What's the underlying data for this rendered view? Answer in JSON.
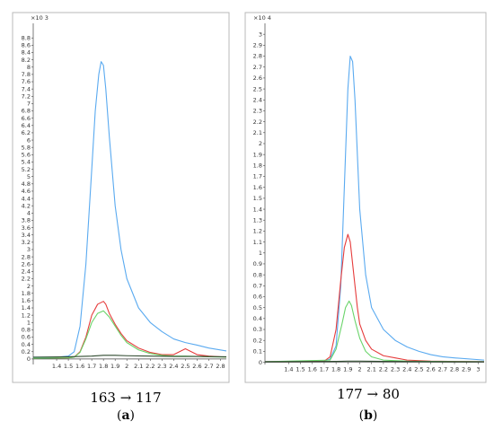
{
  "panels": [
    {
      "label": "a",
      "transition": "163 → 117",
      "multiplier": "×10 3",
      "chart_data": {
        "type": "line",
        "xlim": [
          1.2,
          2.85
        ],
        "ylim": [
          -0.15,
          9.2
        ],
        "xticks": [
          "1.4",
          "1.5",
          "1.6",
          "1.7",
          "1.8",
          "1.9",
          "2",
          "2.1",
          "2.2",
          "2.3",
          "2.4",
          "2.5",
          "2.6",
          "2.7",
          "2.8"
        ],
        "yticks": [
          "0",
          "0.2",
          "0.4",
          "0.6",
          "0.8",
          "1",
          "1.2",
          "1.4",
          "1.6",
          "1.8",
          "2",
          "2.2",
          "2.4",
          "2.6",
          "2.8",
          "3",
          "3.2",
          "3.4",
          "3.6",
          "3.8",
          "4",
          "4.2",
          "4.4",
          "4.6",
          "4.8",
          "5",
          "5.2",
          "5.4",
          "5.6",
          "5.8",
          "6",
          "6.2",
          "6.4",
          "6.6",
          "6.8",
          "7",
          "7.2",
          "7.4",
          "7.6",
          "7.8",
          "8",
          "8.2",
          "8.4",
          "8.6",
          "8.8"
        ],
        "series": [
          {
            "color": "#5aaaf0",
            "x": [
              1.2,
              1.4,
              1.5,
              1.55,
              1.6,
              1.65,
              1.7,
              1.73,
              1.76,
              1.78,
              1.8,
              1.82,
              1.85,
              1.9,
              1.95,
              2.0,
              2.1,
              2.2,
              2.3,
              2.4,
              2.5,
              2.6,
              2.7,
              2.85
            ],
            "y": [
              0.05,
              0.05,
              0.08,
              0.2,
              0.9,
              2.6,
              5.2,
              6.8,
              7.8,
              8.15,
              8.05,
              7.4,
              6.1,
              4.2,
              3.0,
              2.2,
              1.4,
              1.0,
              0.75,
              0.55,
              0.45,
              0.38,
              0.3,
              0.22
            ]
          },
          {
            "color": "#e63c3c",
            "x": [
              1.2,
              1.5,
              1.55,
              1.6,
              1.65,
              1.7,
              1.75,
              1.8,
              1.82,
              1.85,
              1.9,
              1.95,
              2.0,
              2.1,
              2.2,
              2.3,
              2.4,
              2.45,
              2.5,
              2.55,
              2.6,
              2.7,
              2.85
            ],
            "y": [
              0.02,
              0.03,
              0.05,
              0.2,
              0.6,
              1.2,
              1.5,
              1.58,
              1.5,
              1.25,
              0.95,
              0.7,
              0.5,
              0.3,
              0.18,
              0.12,
              0.12,
              0.2,
              0.28,
              0.2,
              0.12,
              0.08,
              0.05
            ]
          },
          {
            "color": "#6ad46a",
            "x": [
              1.2,
              1.5,
              1.55,
              1.6,
              1.65,
              1.7,
              1.75,
              1.8,
              1.85,
              1.9,
              1.95,
              2.0,
              2.1,
              2.2,
              2.3,
              2.4,
              2.5,
              2.6,
              2.7,
              2.85
            ],
            "y": [
              0.02,
              0.03,
              0.05,
              0.18,
              0.55,
              1.0,
              1.25,
              1.32,
              1.15,
              0.9,
              0.65,
              0.45,
              0.25,
              0.15,
              0.1,
              0.08,
              0.08,
              0.07,
              0.06,
              0.05
            ]
          },
          {
            "color": "#2f4a2f",
            "x": [
              1.2,
              1.5,
              1.7,
              1.8,
              1.9,
              2.0,
              2.2,
              2.4,
              2.6,
              2.85
            ],
            "y": [
              0.05,
              0.06,
              0.08,
              0.1,
              0.1,
              0.09,
              0.08,
              0.07,
              0.07,
              0.06
            ]
          }
        ]
      }
    },
    {
      "label": "b",
      "transition": "177 → 80",
      "multiplier": "×10 4",
      "chart_data": {
        "type": "line",
        "xlim": [
          1.2,
          3.05
        ],
        "ylim": [
          -0.02,
          3.1
        ],
        "xticks": [
          "1.4",
          "1.5",
          "1.6",
          "1.7",
          "1.8",
          "1.9",
          "2",
          "2.1",
          "2.2",
          "2.3",
          "2.4",
          "2.5",
          "2.6",
          "2.7",
          "2.8",
          "2.9",
          "3"
        ],
        "yticks": [
          "0",
          "0.1",
          "0.2",
          "0.3",
          "0.4",
          "0.5",
          "0.6",
          "0.7",
          "0.8",
          "0.9",
          "1",
          "1.1",
          "1.2",
          "1.3",
          "1.4",
          "1.5",
          "1.6",
          "1.7",
          "1.8",
          "1.9",
          "2",
          "2.1",
          "2.2",
          "2.3",
          "2.4",
          "2.5",
          "2.6",
          "2.7",
          "2.8",
          "2.9",
          "3"
        ],
        "series": [
          {
            "color": "#5aaaf0",
            "x": [
              1.2,
              1.7,
              1.75,
              1.8,
              1.84,
              1.87,
              1.9,
              1.92,
              1.94,
              1.96,
              1.98,
              2.0,
              2.05,
              2.1,
              2.2,
              2.3,
              2.4,
              2.5,
              2.6,
              2.7,
              2.8,
              3.05
            ],
            "y": [
              0.005,
              0.01,
              0.03,
              0.15,
              0.7,
              1.6,
              2.5,
              2.8,
              2.75,
              2.4,
              1.9,
              1.4,
              0.8,
              0.5,
              0.3,
              0.2,
              0.14,
              0.1,
              0.07,
              0.05,
              0.04,
              0.02
            ]
          },
          {
            "color": "#e63c3c",
            "x": [
              1.2,
              1.7,
              1.75,
              1.8,
              1.84,
              1.87,
              1.9,
              1.92,
              1.95,
              1.98,
              2.0,
              2.05,
              2.1,
              2.2,
              2.3,
              2.4,
              2.6,
              3.05
            ],
            "y": [
              0.005,
              0.01,
              0.05,
              0.3,
              0.75,
              1.05,
              1.17,
              1.1,
              0.8,
              0.5,
              0.35,
              0.2,
              0.12,
              0.06,
              0.04,
              0.02,
              0.01,
              0.005
            ]
          },
          {
            "color": "#6ad46a",
            "x": [
              1.2,
              1.75,
              1.8,
              1.85,
              1.88,
              1.91,
              1.93,
              1.96,
              2.0,
              2.05,
              2.1,
              2.2,
              2.4,
              3.05
            ],
            "y": [
              0.005,
              0.02,
              0.12,
              0.35,
              0.5,
              0.56,
              0.52,
              0.38,
              0.22,
              0.1,
              0.05,
              0.02,
              0.01,
              0.005
            ]
          },
          {
            "color": "#2f4a2f",
            "x": [
              1.2,
              1.8,
              1.9,
              2.0,
              2.2,
              2.6,
              3.05
            ],
            "y": [
              0.005,
              0.008,
              0.01,
              0.01,
              0.008,
              0.006,
              0.005
            ]
          }
        ]
      }
    }
  ]
}
